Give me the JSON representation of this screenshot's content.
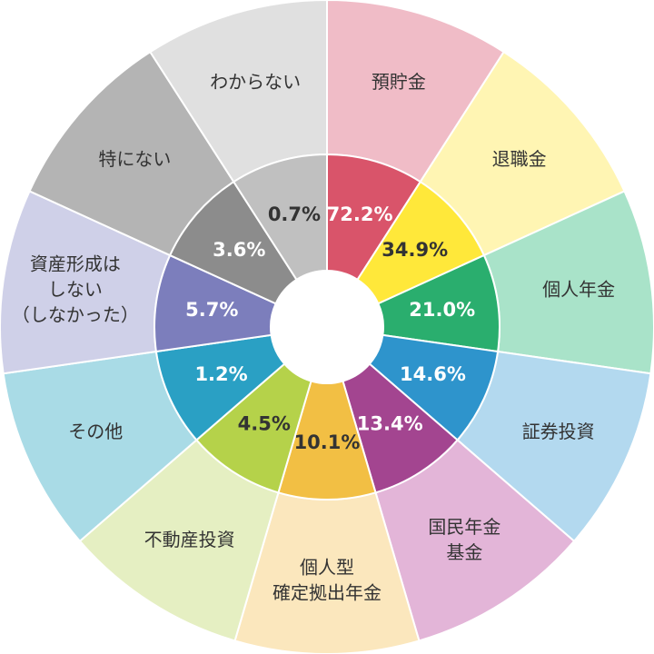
{
  "chart_data": {
    "type": "equal-ring",
    "categories": [
      [
        "預貯金"
      ],
      [
        "退職金"
      ],
      [
        "個人年金"
      ],
      [
        "証券投資"
      ],
      [
        "国民年金",
        "基金"
      ],
      [
        "個人型",
        "確定拠出年金"
      ],
      [
        "不動産投資"
      ],
      [
        "その他"
      ],
      [
        "資産形成は",
        "しない",
        "（しなかった）"
      ],
      [
        "特にない"
      ],
      [
        "わからない"
      ]
    ],
    "values": [
      72.2,
      34.9,
      21.0,
      14.6,
      13.4,
      10.1,
      4.5,
      1.2,
      5.7,
      3.6,
      0.7
    ],
    "value_labels": [
      "72.2%",
      "34.9%",
      "21.0%",
      "14.6%",
      "13.4%",
      "10.1%",
      "4.5%",
      "1.2%",
      "5.7%",
      "3.6%",
      "0.7%"
    ],
    "colors": [
      "#d9546a",
      "#ffe83a",
      "#2aae6e",
      "#2e94cc",
      "#a34590",
      "#f2bf44",
      "#b5d24a",
      "#2aa0c4",
      "#7c7ebc",
      "#8c8c8c",
      "#c0c0c0"
    ],
    "outer_colors": [
      "#f0bcc7",
      "#fff5b3",
      "#a9e3c9",
      "#b3d9ef",
      "#e3b5d8",
      "#fbe7bd",
      "#e5efc2",
      "#a9dbe6",
      "#cfd0e8",
      "#b4b4b4",
      "#e0e0e0"
    ]
  }
}
